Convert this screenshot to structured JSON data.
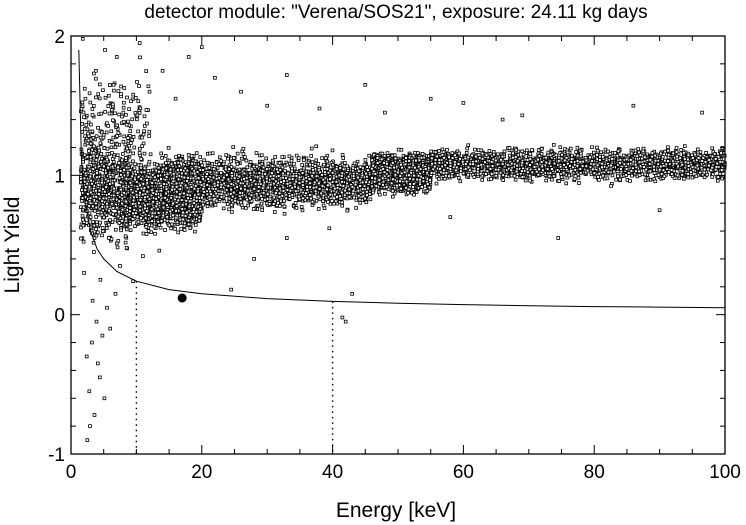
{
  "chart_data": {
    "type": "scatter",
    "title": "detector module: \"Verena/SOS21\", exposure:  24.11 kg days",
    "xlabel": "Energy [keV]",
    "ylabel": "Light Yield",
    "xlim": [
      0,
      100
    ],
    "ylim": [
      -1,
      2
    ],
    "x_ticks": [
      {
        "value": 0,
        "label": "0"
      },
      {
        "value": 20,
        "label": "20"
      },
      {
        "value": 40,
        "label": "40"
      },
      {
        "value": 60,
        "label": "60"
      },
      {
        "value": 80,
        "label": "80"
      },
      {
        "value": 100,
        "label": "100"
      }
    ],
    "y_ticks": [
      {
        "value": -1,
        "label": "-1"
      },
      {
        "value": 0,
        "label": "0"
      },
      {
        "value": 1,
        "label": "1"
      },
      {
        "value": 2,
        "label": "2"
      }
    ],
    "x_minor_step": 5,
    "y_minor_step": 0.2,
    "grid": false,
    "legend": "none",
    "marker": "open-square",
    "color": "#000000",
    "acceptance_region": {
      "x_min": 10,
      "x_max": 40,
      "style": "dotted"
    },
    "boundary_curve": [
      [
        1.2,
        1.9
      ],
      [
        1.6,
        1.1
      ],
      [
        2,
        0.85
      ],
      [
        3,
        0.6
      ],
      [
        4,
        0.47
      ],
      [
        5,
        0.4
      ],
      [
        7,
        0.31
      ],
      [
        10,
        0.24
      ],
      [
        15,
        0.18
      ],
      [
        20,
        0.15
      ],
      [
        30,
        0.115
      ],
      [
        40,
        0.095
      ],
      [
        50,
        0.082
      ],
      [
        60,
        0.072
      ],
      [
        70,
        0.064
      ],
      [
        80,
        0.058
      ],
      [
        90,
        0.054
      ],
      [
        100,
        0.05
      ]
    ],
    "series": [
      {
        "points": [
          [
            17.0,
            0.12
          ],
          [
            24.5,
            0.18
          ],
          [
            9.5,
            0.24
          ],
          [
            43.0,
            0.15
          ],
          [
            41.5,
            -0.02
          ],
          [
            42.0,
            -0.05
          ],
          [
            74.5,
            0.55
          ],
          [
            39.5,
            0.62
          ],
          [
            28.0,
            0.4
          ],
          [
            33.0,
            0.55
          ],
          [
            3.5,
            0.45
          ],
          [
            4.5,
            0.25
          ],
          [
            3.2,
            -0.2
          ],
          [
            4.1,
            -0.35
          ],
          [
            2.8,
            -0.55
          ],
          [
            3.6,
            -0.72
          ],
          [
            2.5,
            -0.9
          ],
          [
            4.8,
            -0.15
          ],
          [
            5.5,
            0.05
          ],
          [
            6.0,
            -0.1
          ],
          [
            3.0,
            0.7
          ],
          [
            2.2,
            1.55
          ],
          [
            3.8,
            1.75
          ],
          [
            5.2,
            1.9
          ],
          [
            7.0,
            1.85
          ],
          [
            10.5,
            1.95
          ],
          [
            14.0,
            1.75
          ],
          [
            18.0,
            1.85
          ],
          [
            22.0,
            1.7
          ],
          [
            26.0,
            1.6
          ],
          [
            30.0,
            1.5
          ],
          [
            45.0,
            1.65
          ],
          [
            48.0,
            1.45
          ],
          [
            33.0,
            1.72
          ],
          [
            12.0,
            1.6
          ],
          [
            8.0,
            1.45
          ],
          [
            6.5,
            1.65
          ],
          [
            16.0,
            1.55
          ],
          [
            20.0,
            1.92
          ],
          [
            1.8,
            1.98
          ],
          [
            2.6,
            1.3
          ],
          [
            4.2,
            1.2
          ],
          [
            1.5,
            0.95
          ],
          [
            2.0,
            0.3
          ],
          [
            5.8,
            0.55
          ],
          [
            8.5,
            0.48
          ],
          [
            11.0,
            0.42
          ],
          [
            13.5,
            0.46
          ],
          [
            60.0,
            1.52
          ],
          [
            86.0,
            1.5
          ],
          [
            96.5,
            1.45
          ],
          [
            69.0,
            1.43
          ],
          [
            55.0,
            1.55
          ],
          [
            38.0,
            1.48
          ],
          [
            2.4,
            -0.3
          ],
          [
            3.3,
            0.1
          ],
          [
            4.4,
            -0.45
          ],
          [
            5.1,
            -0.6
          ],
          [
            2.9,
            -0.8
          ],
          [
            3.9,
            -0.05
          ],
          [
            6.8,
            0.15
          ],
          [
            7.5,
            0.35
          ],
          [
            58.0,
            0.7
          ],
          [
            90.0,
            0.75
          ],
          [
            66.0,
            1.4
          ]
        ]
      }
    ],
    "clusters": [
      {
        "x_range": [
          1.5,
          9
        ],
        "y_center": 0.9,
        "y_spread": 0.55,
        "count": 750
      },
      {
        "x_range": [
          9,
          20
        ],
        "y_center": 0.85,
        "y_spread": 0.34,
        "count": 1400
      },
      {
        "x_range": [
          13,
          46
        ],
        "y_center": 0.95,
        "y_spread": 0.28,
        "count": 2200
      },
      {
        "x_range": [
          46,
          55
        ],
        "y_center": 1.02,
        "y_spread": 0.2,
        "count": 1700
      },
      {
        "x_range": [
          55,
          100
        ],
        "y_center": 1.08,
        "y_spread": 0.17,
        "count": 2000
      },
      {
        "x_range": [
          1.5,
          12
        ],
        "y_center": 1.35,
        "y_spread": 0.6,
        "count": 180
      }
    ]
  }
}
